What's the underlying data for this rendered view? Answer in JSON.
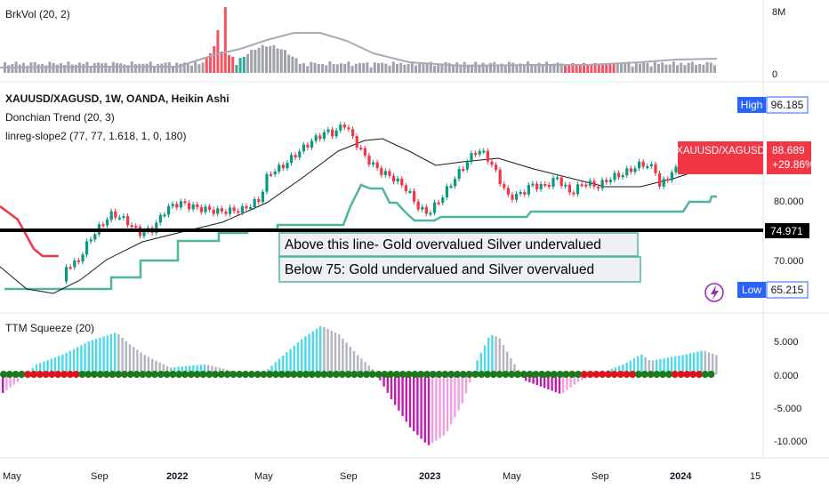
{
  "chart_data": {
    "type": "candlestick",
    "panes": {
      "volume": {
        "label": "BrkVol (20, 2)",
        "axis_ticks": [
          "8M",
          "0"
        ]
      },
      "price": {
        "symbol_line": "XAUUSD/XAGUSD, 1W, OANDA, Heikin Ashi",
        "indicator_1": "Donchian Trend (20, 3)",
        "indicator_2": "linreg-slope2 (77, 77, 1.618, 1, 0, 180)",
        "axis_ticks": [
          "80.000",
          "70.000"
        ],
        "high_label": "High",
        "high_value": "96.185",
        "low_label": "Low",
        "low_value": "65.215",
        "symbol_tag": "XAUUSD/XAGUSD",
        "last_price": "88.689",
        "change": "+29.86%",
        "hline_value": "74.971",
        "annotation_1": "Above this line- Gold overvalued Silver undervalued",
        "annotation_2": "Below 75:  Gold undervalued and Silver overvalued",
        "ylim": [
          60,
          100
        ]
      },
      "squeeze": {
        "label": "TTM Squeeze (20)",
        "axis_ticks": [
          "5.000",
          "0.000",
          "-5.000",
          "-10.000"
        ],
        "ylim": [
          -11,
          7
        ]
      }
    },
    "x_ticks": [
      "May",
      "Sep",
      "2022",
      "May",
      "Sep",
      "2023",
      "May",
      "Sep",
      "2024",
      "15"
    ],
    "colors": {
      "up": "#089981",
      "down": "#f23645",
      "donchian": "#4db6a0",
      "hline": "#000000",
      "squeeze_pos": "#4dd9e8",
      "squeeze_pos_fade": "#b2b5be",
      "squeeze_neg": "#c21bb0",
      "squeeze_neg_fade": "#f19fe3",
      "dot_on": "#1b7a1b",
      "dot_off": "#e0121c",
      "badge_blue": "#2962ff"
    }
  }
}
